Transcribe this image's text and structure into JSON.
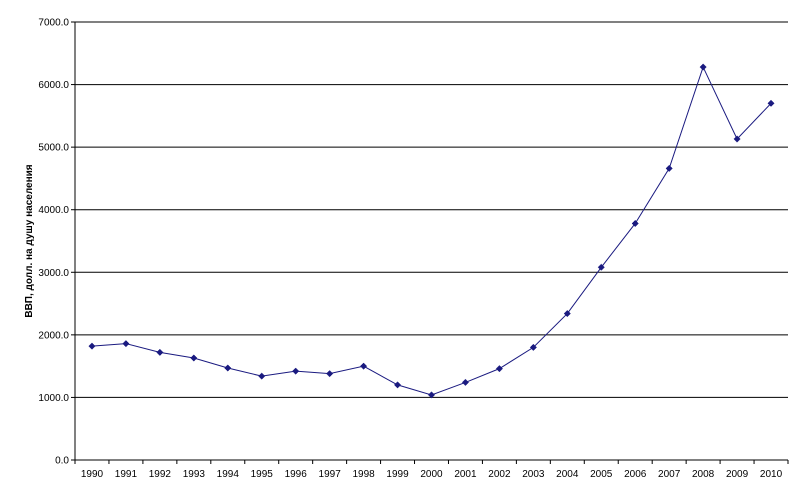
{
  "chart_data": {
    "type": "line",
    "title": "",
    "xlabel": "",
    "ylabel": "ВВП, долл. на душу населения",
    "ylim": [
      0,
      7000
    ],
    "y_ticks": [
      "0.0",
      "1000.0",
      "2000.0",
      "3000.0",
      "4000.0",
      "5000.0",
      "6000.0",
      "7000.0"
    ],
    "y_tick_values": [
      0,
      1000,
      2000,
      3000,
      4000,
      5000,
      6000,
      7000
    ],
    "grid": "horizontal",
    "legend": "none",
    "categories": [
      "1990",
      "1991",
      "1992",
      "1993",
      "1994",
      "1995",
      "1996",
      "1997",
      "1998",
      "1999",
      "2000",
      "2001",
      "2002",
      "2003",
      "2004",
      "2005",
      "2006",
      "2007",
      "2008",
      "2009",
      "2010"
    ],
    "series": [
      {
        "values": [
          1820,
          1860,
          1720,
          1630,
          1470,
          1340,
          1420,
          1380,
          1500,
          1200,
          1040,
          1240,
          1460,
          1800,
          2340,
          3080,
          3780,
          4660,
          6280,
          5130,
          5700
        ],
        "color": "#1a1a80",
        "marker": "diamond"
      }
    ]
  }
}
